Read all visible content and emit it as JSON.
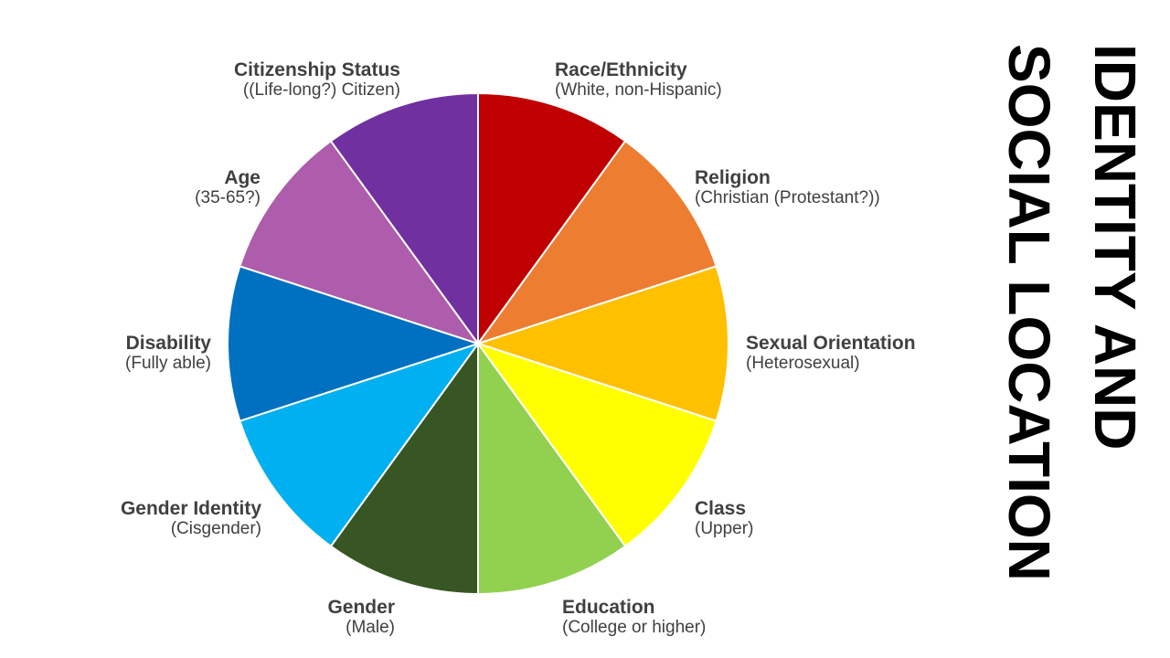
{
  "title": {
    "line1": "IDENTITY AND",
    "line2": "SOCIAL LOCATION"
  },
  "chart_data": {
    "type": "pie",
    "slices": [
      {
        "label": "Race/Ethnicity",
        "sublabel": "(White, non-Hispanic)",
        "value": 1,
        "color": "#C00000"
      },
      {
        "label": "Religion",
        "sublabel": "(Christian (Protestant?))",
        "value": 1,
        "color": "#ED7D31"
      },
      {
        "label": "Sexual Orientation",
        "sublabel": "(Heterosexual)",
        "value": 1,
        "color": "#FFC000"
      },
      {
        "label": "Class",
        "sublabel": "(Upper)",
        "value": 1,
        "color": "#FFFF00"
      },
      {
        "label": "Education",
        "sublabel": "(College or higher)",
        "value": 1,
        "color": "#92D050"
      },
      {
        "label": "Gender",
        "sublabel": "(Male)",
        "value": 1,
        "color": "#375623"
      },
      {
        "label": "Gender Identity",
        "sublabel": "(Cisgender)",
        "value": 1,
        "color": "#00B0F0"
      },
      {
        "label": "Disability",
        "sublabel": "(Fully able)",
        "value": 1,
        "color": "#0070C0"
      },
      {
        "label": "Age",
        "sublabel": "(35-65?)",
        "value": 1,
        "color": "#AE5CAC"
      },
      {
        "label": "Citizenship Status",
        "sublabel": "((Life-long?) Citizen)",
        "value": 1,
        "color": "#7030A0"
      }
    ]
  }
}
